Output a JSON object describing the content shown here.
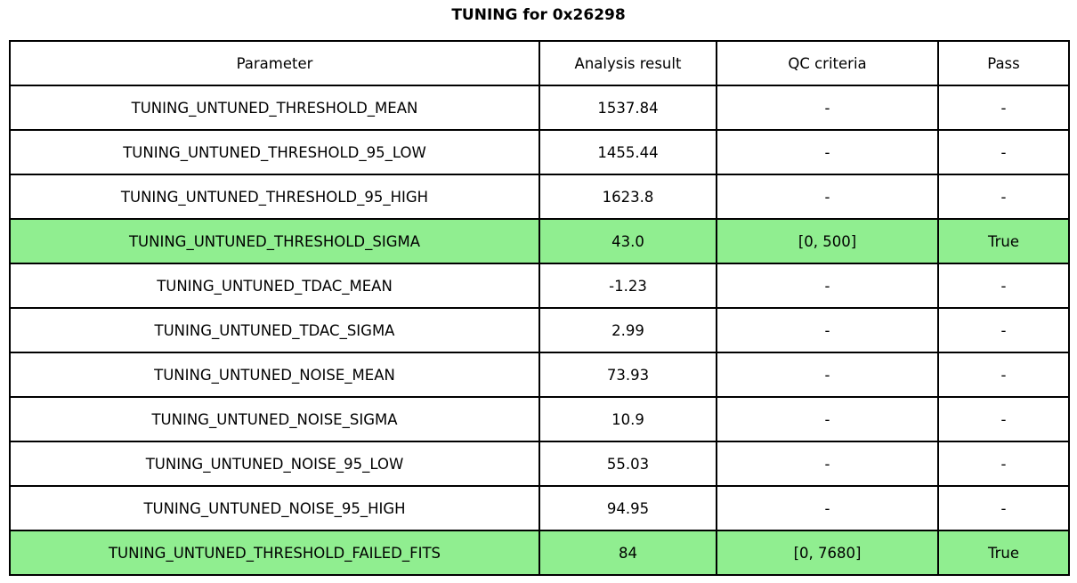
{
  "title": "TUNING for 0x26298",
  "colors": {
    "highlight_pass": "#90ee90",
    "border": "#000000",
    "background": "#ffffff",
    "text": "#000000"
  },
  "chart_data": {
    "type": "table",
    "title": "TUNING for 0x26298",
    "columns": [
      "Parameter",
      "Analysis result",
      "QC criteria",
      "Pass"
    ],
    "rows": [
      {
        "parameter": "TUNING_UNTUNED_THRESHOLD_MEAN",
        "analysis_result": "1537.84",
        "qc_criteria": "-",
        "pass": "-",
        "highlighted": false
      },
      {
        "parameter": "TUNING_UNTUNED_THRESHOLD_95_LOW",
        "analysis_result": "1455.44",
        "qc_criteria": "-",
        "pass": "-",
        "highlighted": false
      },
      {
        "parameter": "TUNING_UNTUNED_THRESHOLD_95_HIGH",
        "analysis_result": "1623.8",
        "qc_criteria": "-",
        "pass": "-",
        "highlighted": false
      },
      {
        "parameter": "TUNING_UNTUNED_THRESHOLD_SIGMA",
        "analysis_result": "43.0",
        "qc_criteria": "[0, 500]",
        "pass": "True",
        "highlighted": true
      },
      {
        "parameter": "TUNING_UNTUNED_TDAC_MEAN",
        "analysis_result": "-1.23",
        "qc_criteria": "-",
        "pass": "-",
        "highlighted": false
      },
      {
        "parameter": "TUNING_UNTUNED_TDAC_SIGMA",
        "analysis_result": "2.99",
        "qc_criteria": "-",
        "pass": "-",
        "highlighted": false
      },
      {
        "parameter": "TUNING_UNTUNED_NOISE_MEAN",
        "analysis_result": "73.93",
        "qc_criteria": "-",
        "pass": "-",
        "highlighted": false
      },
      {
        "parameter": "TUNING_UNTUNED_NOISE_SIGMA",
        "analysis_result": "10.9",
        "qc_criteria": "-",
        "pass": "-",
        "highlighted": false
      },
      {
        "parameter": "TUNING_UNTUNED_NOISE_95_LOW",
        "analysis_result": "55.03",
        "qc_criteria": "-",
        "pass": "-",
        "highlighted": false
      },
      {
        "parameter": "TUNING_UNTUNED_NOISE_95_HIGH",
        "analysis_result": "94.95",
        "qc_criteria": "-",
        "pass": "-",
        "highlighted": false
      },
      {
        "parameter": "TUNING_UNTUNED_THRESHOLD_FAILED_FITS",
        "analysis_result": "84",
        "qc_criteria": "[0, 7680]",
        "pass": "True",
        "highlighted": true
      }
    ]
  }
}
